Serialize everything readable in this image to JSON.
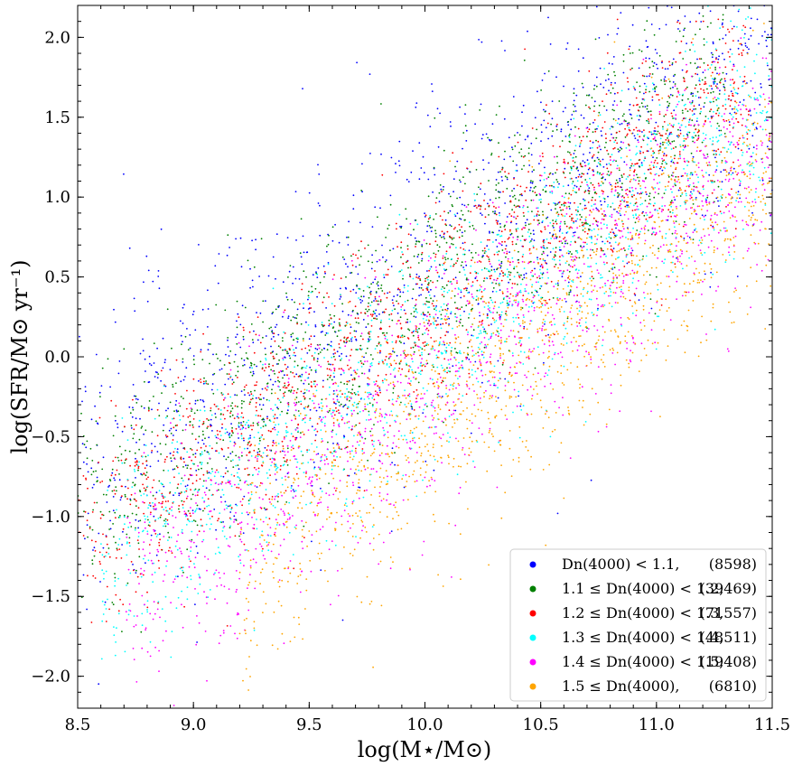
{
  "chart_data": {
    "type": "scatter",
    "title": "",
    "xlabel": "log(M⋆/M⊙)",
    "ylabel": "log(SFR/M⊙ yr⁻¹)",
    "xlim": [
      8.5,
      11.5
    ],
    "ylim": [
      -2.2,
      2.2
    ],
    "x_ticks": [
      8.5,
      9.0,
      9.5,
      10.0,
      10.5,
      11.0,
      11.5
    ],
    "x_tick_labels": [
      "8.5",
      "9.0",
      "9.5",
      "10.0",
      "10.5",
      "11.0",
      "11.5"
    ],
    "y_ticks": [
      2.0,
      1.5,
      1.0,
      0.5,
      0.0,
      -0.5,
      -1.0,
      -1.5,
      -2.0
    ],
    "y_tick_labels": [
      "2.0",
      "1.5",
      "1.0",
      "0.5",
      "0.0",
      "−0.5",
      "−1.0",
      "−1.5",
      "−2.0"
    ],
    "grid": false,
    "legend_position": "bottom-right",
    "series": [
      {
        "name": "Dn(4000) < 1.1,",
        "count": "(8598)",
        "color": "#0000ff",
        "trend": {
          "x_range": [
            8.5,
            11.5
          ],
          "slope": 0.9,
          "intercept_at_10": 0.6,
          "scatter": 0.5
        }
      },
      {
        "name": "1.1 ≤ Dn(4000) < 1.2,",
        "count": "(39469)",
        "color": "#008000",
        "trend": {
          "x_range": [
            8.5,
            11.3
          ],
          "slope": 0.95,
          "intercept_at_10": 0.45,
          "scatter": 0.35
        }
      },
      {
        "name": "1.2 ≤ Dn(4000) < 1.3,",
        "count": "(71557)",
        "color": "#ff0000",
        "trend": {
          "x_range": [
            8.5,
            11.4
          ],
          "slope": 1.0,
          "intercept_at_10": 0.3,
          "scatter": 0.33
        }
      },
      {
        "name": "1.3 ≤ Dn(4000) < 1.4,",
        "count": "(48511)",
        "color": "#00ffff",
        "trend": {
          "x_range": [
            8.6,
            11.5
          ],
          "slope": 1.0,
          "intercept_at_10": 0.05,
          "scatter": 0.35
        }
      },
      {
        "name": "1.4 ≤ Dn(4000) < 1.5,",
        "count": "(19408)",
        "color": "#ff00ff",
        "trend": {
          "x_range": [
            8.7,
            11.5
          ],
          "slope": 1.0,
          "intercept_at_10": -0.15,
          "scatter": 0.38
        }
      },
      {
        "name": "1.5 ≤ Dn(4000),",
        "count": "(6810)",
        "color": "#ffa500",
        "trend": {
          "x_range": [
            9.2,
            11.5
          ],
          "slope": 1.05,
          "intercept_at_10": -0.4,
          "scatter": 0.4
        }
      }
    ]
  }
}
